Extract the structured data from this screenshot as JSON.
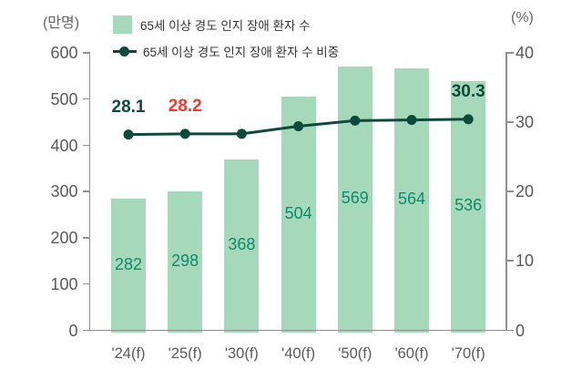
{
  "units": {
    "left": "(만명)",
    "right": "(%)"
  },
  "legend": {
    "items": [
      {
        "label": "65세 이상 경도 인지 장애 환자 수",
        "marker": "bar-swatch",
        "color": "#a6d9ba"
      },
      {
        "label": "65세 이상 경도 인지 장애 환자 수 비중",
        "marker": "line-dot",
        "color": "#0c4a3d"
      }
    ]
  },
  "chart_data": {
    "type": "bar",
    "title": "",
    "categories": [
      "'24(f)",
      "'25(f)",
      "'30(f)",
      "'40(f)",
      "'50(f)",
      "'60(f)",
      "'70(f)"
    ],
    "series": [
      {
        "name": "65세 이상 경도 인지 장애 환자 수",
        "type": "bar",
        "axis": "left",
        "values": [
          282,
          298,
          368,
          504,
          569,
          564,
          536
        ],
        "color": "#a6d9ba",
        "label_color": "#0e8a6c"
      },
      {
        "name": "65세 이상 경도 인지 장애 환자 수 비중",
        "type": "line",
        "axis": "right",
        "values": [
          28.1,
          28.2,
          28.2,
          29.3,
          30.1,
          30.2,
          30.3
        ],
        "color": "#0c4a3d",
        "point_labels": [
          {
            "index": 0,
            "text": "28.1",
            "color": "#0c4a3d"
          },
          {
            "index": 1,
            "text": "28.2",
            "color": "#f03a30"
          },
          {
            "index": 6,
            "text": "30.3",
            "color": "#0c4a3d"
          }
        ]
      }
    ],
    "left_axis": {
      "label": "(만명)",
      "min": 0,
      "max": 600,
      "tick_step": 100
    },
    "right_axis": {
      "label": "(%)",
      "min": 0,
      "max": 40,
      "tick_step": 10
    },
    "grid": false,
    "legend_position": "top-left"
  },
  "colors": {
    "axis_line": "#909090",
    "tick_text": "#595959",
    "unit_text": "#666666",
    "legend_text": "#333333",
    "background": "#ffffff"
  }
}
